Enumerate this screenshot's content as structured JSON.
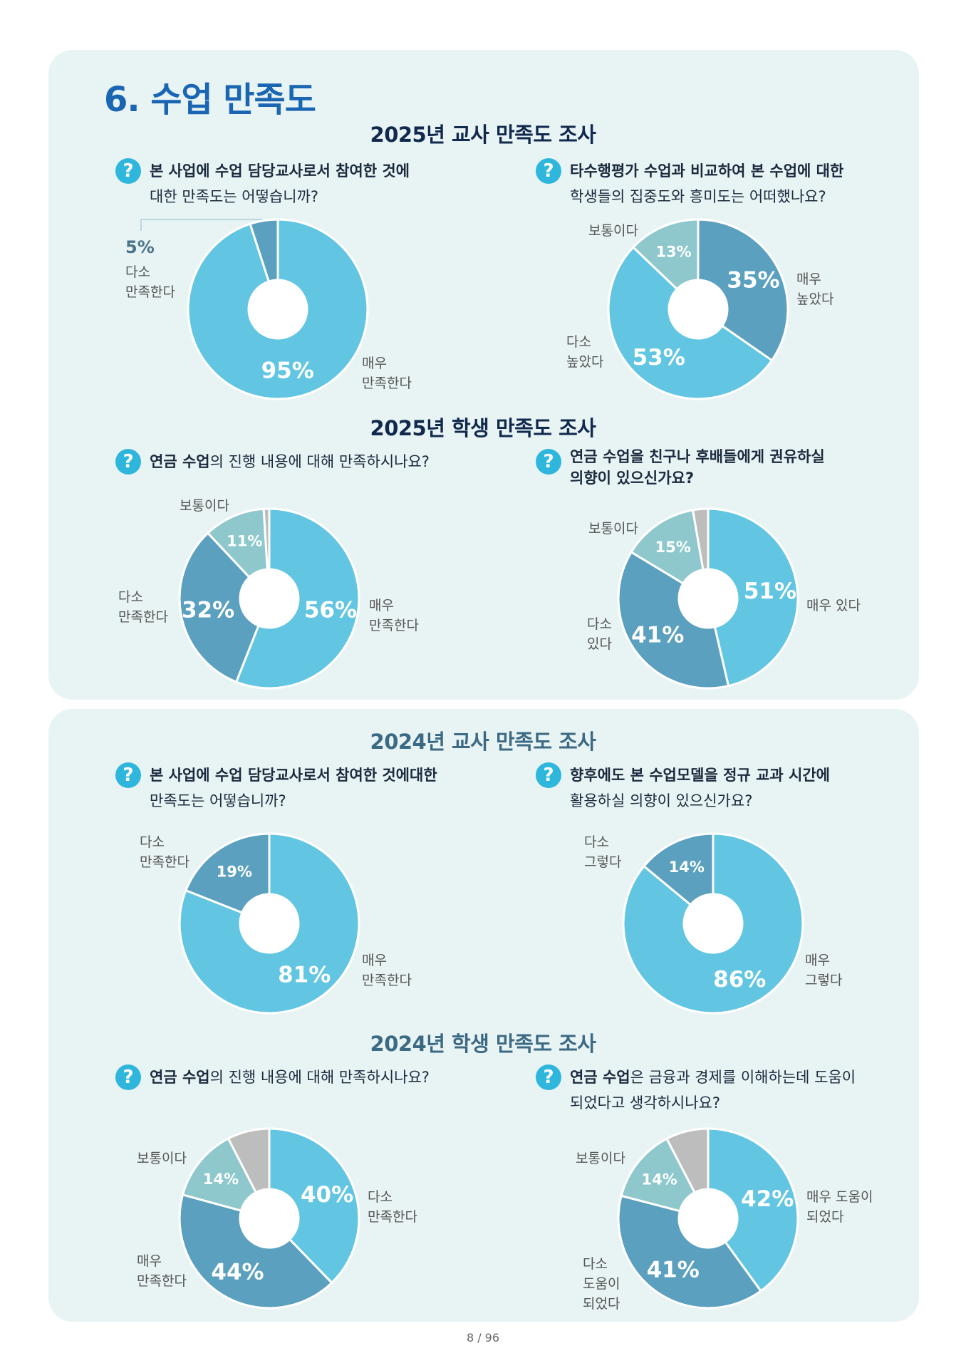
{
  "page_title": "6. 수업 만족도",
  "page_number": "8 / 96",
  "colors": {
    "light_blue": "#62c6e2",
    "dark_blue": "#5ba0bf",
    "teal": "#8ec8cc",
    "gray": "#bdbdbd"
  },
  "sections": {
    "t2025": "2025년 교사 만족도 조사",
    "s2025": "2025년 학생 만족도 조사",
    "t2024": "2024년 교사 만족도 조사",
    "s2024": "2024년 학생 만족도 조사"
  },
  "questions": {
    "q1": {
      "l1": "본 사업에 수업 담당교사로서 참여한 것에",
      "l2": "대한 만족도는 어떻습니까?"
    },
    "q2": {
      "l1": "타수행평가 수업과 비교하여 본 수업에 대한",
      "l2": "학생들의 집중도와 흥미도는 어떠했나요?"
    },
    "q3": {
      "bold": "연금 수업",
      "rest": "의 진행 내용에 대해 만족하시나요?"
    },
    "q4": {
      "l1": "연금 수업을 친구나 후배들에게 권유하실",
      "l2": "의향이 있으신가요?"
    },
    "q5": {
      "l1": "본 사업에 수업 담당교사로서 참여한 것에대한",
      "l2": "만족도는 어떻습니까?"
    },
    "q6": {
      "l1": "향후에도 본 수업모델을 정규 교과 시간에",
      "l2": "활용하실 의향이 있으신가요?"
    },
    "q7": {
      "bold": "연금 수업",
      "rest": "의 진행 내용에 대해 만족하시나요?"
    },
    "q8": {
      "bold": "연금 수업",
      "rest": "은 금융과 경제를 이해하는데 도움이",
      "l2": "되었다고 생각하시나요?"
    }
  },
  "chart_data": [
    {
      "id": "c1",
      "type": "pie",
      "title": "본 사업에 수업 담당교사로서 참여한 것에 대한 만족도는 어떻습니까?",
      "slices": [
        {
          "label": "매우 만족한다",
          "value": 95,
          "display": "95%",
          "color": "#62c6e2"
        },
        {
          "label": "다소 만족한다",
          "value": 5,
          "display": "5%",
          "color": "#5ba0bf"
        }
      ]
    },
    {
      "id": "c2",
      "type": "pie",
      "title": "타수행평가 수업과 비교하여 본 수업에 대한 학생들의 집중도와 흥미도는 어떠했나요?",
      "slices": [
        {
          "label": "매우 높았다",
          "value": 35,
          "display": "35%",
          "color": "#5ba0bf"
        },
        {
          "label": "다소 높았다",
          "value": 53,
          "display": "53%",
          "color": "#62c6e2"
        },
        {
          "label": "보통이다",
          "value": 13,
          "display": "13%",
          "color": "#8ec8cc"
        }
      ]
    },
    {
      "id": "c3",
      "type": "pie",
      "title": "연금 수업의 진행 내용에 대해 만족하시나요?",
      "slices": [
        {
          "label": "매우 만족한다",
          "value": 56,
          "display": "56%",
          "color": "#62c6e2"
        },
        {
          "label": "다소 만족한다",
          "value": 32,
          "display": "32%",
          "color": "#5ba0bf"
        },
        {
          "label": "보통이다",
          "value": 11,
          "display": "11%",
          "color": "#8ec8cc"
        },
        {
          "label": "",
          "value": 1,
          "display": "",
          "color": "#bdbdbd"
        }
      ]
    },
    {
      "id": "c4",
      "type": "pie",
      "title": "연금 수업을 친구나 후배들에게 권유하실 의향이 있으신가요?",
      "slices": [
        {
          "label": "매우 있다",
          "value": 51,
          "display": "51%",
          "color": "#62c6e2"
        },
        {
          "label": "다소 있다",
          "value": 41,
          "display": "41%",
          "color": "#5ba0bf"
        },
        {
          "label": "보통이다",
          "value": 15,
          "display": "15%",
          "color": "#8ec8cc"
        },
        {
          "label": "",
          "value": 3,
          "display": "",
          "color": "#bdbdbd"
        }
      ]
    },
    {
      "id": "c5",
      "type": "pie",
      "title": "본 사업에 수업 담당교사로서 참여한 것에대한 만족도는 어떻습니까?",
      "slices": [
        {
          "label": "매우 만족한다",
          "value": 81,
          "display": "81%",
          "color": "#62c6e2"
        },
        {
          "label": "다소 만족한다",
          "value": 19,
          "display": "19%",
          "color": "#5ba0bf"
        }
      ]
    },
    {
      "id": "c6",
      "type": "pie",
      "title": "향후에도 본 수업모델을 정규 교과 시간에 활용하실 의향이 있으신가요?",
      "slices": [
        {
          "label": "매우 그렇다",
          "value": 86,
          "display": "86%",
          "color": "#62c6e2"
        },
        {
          "label": "다소 그렇다",
          "value": 14,
          "display": "14%",
          "color": "#5ba0bf"
        }
      ]
    },
    {
      "id": "c7",
      "type": "pie",
      "title": "연금 수업의 진행 내용에 대해 만족하시나요?",
      "slices": [
        {
          "label": "다소 만족한다",
          "value": 40,
          "display": "40%",
          "color": "#62c6e2"
        },
        {
          "label": "매우 만족한다",
          "value": 44,
          "display": "44%",
          "color": "#5ba0bf"
        },
        {
          "label": "보통이다",
          "value": 14,
          "display": "14%",
          "color": "#8ec8cc"
        },
        {
          "label": "",
          "value": 8,
          "display": "",
          "color": "#bdbdbd"
        }
      ]
    },
    {
      "id": "c8",
      "type": "pie",
      "title": "연금 수업은 금융과 경제를 이해하는데 도움이 되었다고 생각하시나요?",
      "slices": [
        {
          "label": "매우 도움이 되었다",
          "value": 42,
          "display": "42%",
          "color": "#62c6e2"
        },
        {
          "label": "다소 도움이 되었다",
          "value": 41,
          "display": "41%",
          "color": "#5ba0bf"
        },
        {
          "label": "보통이다",
          "value": 14,
          "display": "14%",
          "color": "#8ec8cc"
        },
        {
          "label": "",
          "value": 8,
          "display": "",
          "color": "#bdbdbd"
        }
      ]
    }
  ],
  "labels": {
    "c1": {
      "pct_small": "5%",
      "l1": "다소",
      "l2": "만족한다",
      "r1": "매우",
      "r2": "만족한다"
    },
    "c2": {
      "top": "보통이다",
      "r1": "매우",
      "r2": "높았다",
      "l1": "다소",
      "l2": "높았다"
    },
    "c3": {
      "top": "보통이다",
      "l1": "다소",
      "l2": "만족한다",
      "r1": "매우",
      "r2": "만족한다"
    },
    "c4": {
      "top": "보통이다",
      "r": "매우 있다",
      "l1": "다소",
      "l2": "있다"
    },
    "c5": {
      "l1": "다소",
      "l2": "만족한다",
      "r1": "매우",
      "r2": "만족한다"
    },
    "c6": {
      "l1": "다소",
      "l2": "그렇다",
      "r1": "매우",
      "r2": "그렇다"
    },
    "c7": {
      "top": "보통이다",
      "r1": "다소",
      "r2": "만족한다",
      "l1": "매우",
      "l2": "만족한다"
    },
    "c8": {
      "top": "보통이다",
      "r1": "매우 도움이",
      "r2": "되었다",
      "l1": "다소",
      "l2": "도움이",
      "l3": "되었다"
    }
  }
}
